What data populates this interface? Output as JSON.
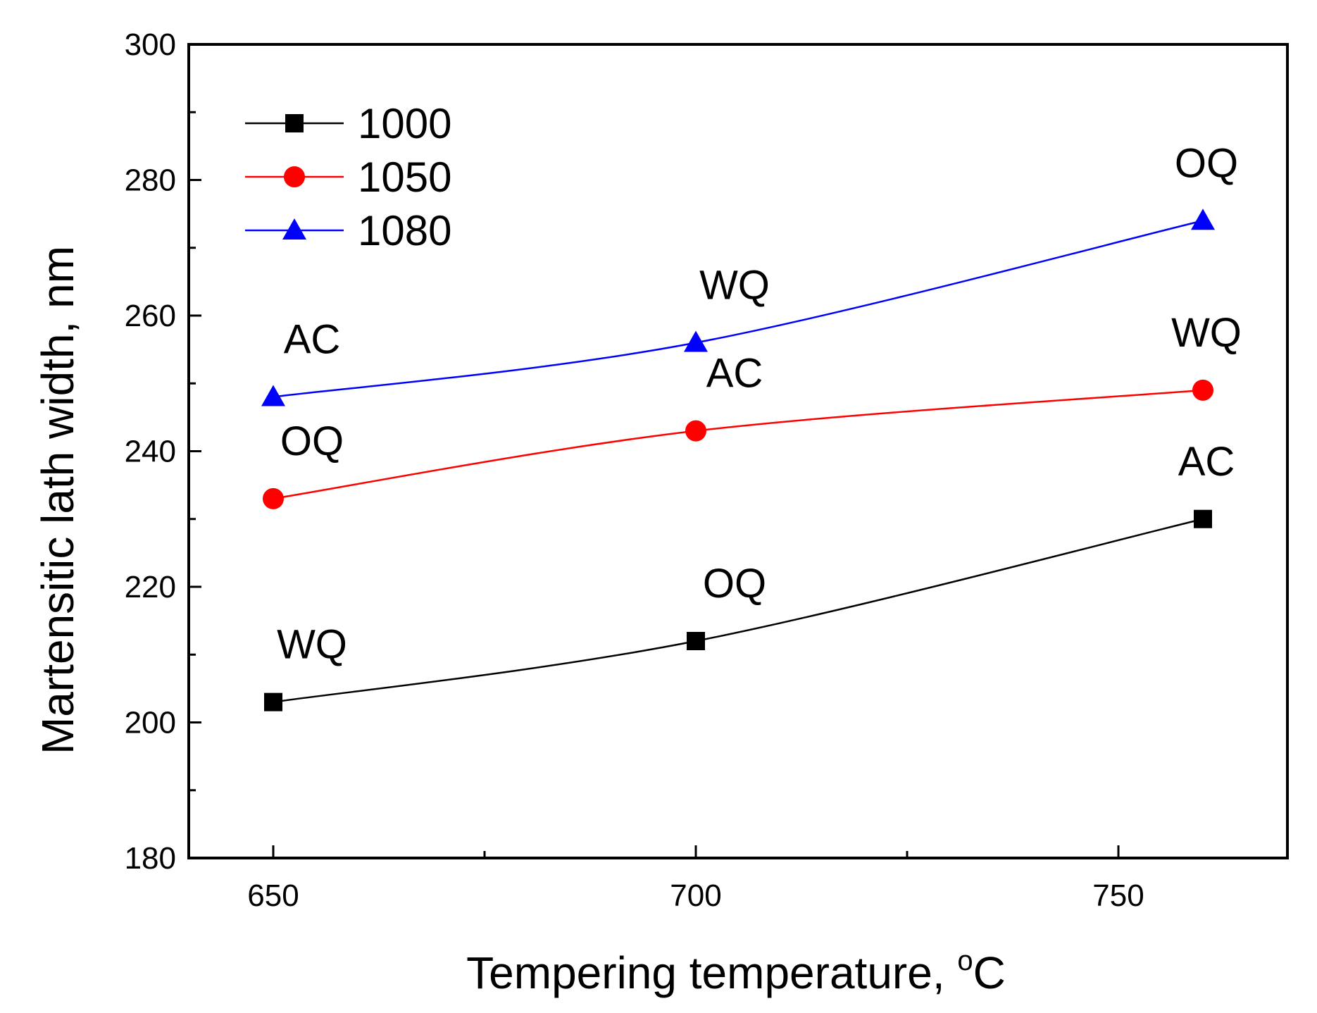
{
  "chart_data": {
    "type": "line",
    "title": "",
    "xlabel": "Tempering temperature, ",
    "xlabel_degree": "o",
    "xlabel_unit": "C",
    "ylabel": "Martensitic lath width, nm",
    "xlim": [
      640,
      770
    ],
    "ylim": [
      180,
      300
    ],
    "x_ticks": [
      650,
      700,
      750
    ],
    "x_tick_labels": [
      "650",
      "700",
      "750"
    ],
    "y_ticks": [
      180,
      200,
      220,
      240,
      260,
      280,
      300
    ],
    "y_tick_labels": [
      "180",
      "200",
      "220",
      "240",
      "260",
      "280",
      "300"
    ],
    "grid": false,
    "legend_position": "top-left",
    "x": [
      650,
      700,
      760
    ],
    "series": [
      {
        "name": "1000",
        "color": "#000000",
        "marker": "square",
        "values": [
          203,
          212,
          230
        ],
        "point_labels": [
          "WQ",
          "OQ",
          "AC"
        ]
      },
      {
        "name": "1050",
        "color": "#ff0000",
        "marker": "circle",
        "values": [
          233,
          243,
          249
        ],
        "point_labels": [
          "OQ",
          "AC",
          "WQ"
        ]
      },
      {
        "name": "1080",
        "color": "#0000ff",
        "marker": "triangle",
        "values": [
          248,
          256,
          274
        ],
        "point_labels": [
          "AC",
          "WQ",
          "OQ"
        ]
      }
    ]
  }
}
